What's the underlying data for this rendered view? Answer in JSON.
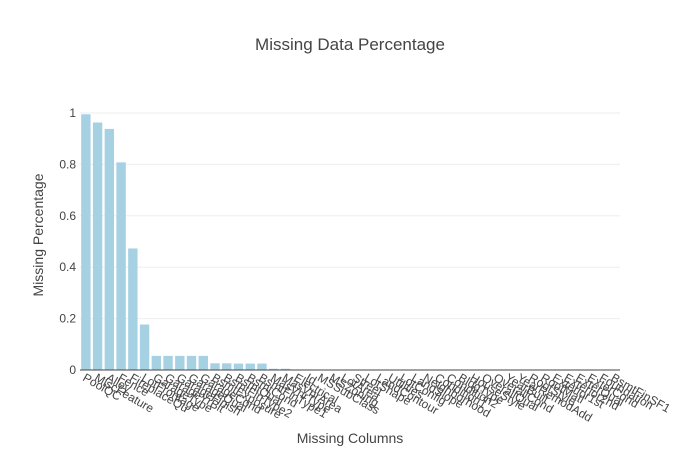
{
  "chart_data": {
    "type": "bar",
    "title": "Missing Data Percentage",
    "xlabel": "Missing Columns",
    "ylabel": "Missing Percentage",
    "ylim": [
      0,
      1
    ],
    "yticks": [
      0,
      0.2,
      0.4,
      0.6,
      0.8,
      1
    ],
    "ytick_labels": [
      "0",
      "0.2",
      "0.4",
      "0.6",
      "0.8",
      "1"
    ],
    "grid": true,
    "bar_color": "#a6d1e3",
    "categories": [
      "PoolQC",
      "MiscFeature",
      "Alley",
      "Fence",
      "FireplaceQu",
      "LotFrontage",
      "GarageType",
      "GarageYrBlt",
      "GarageFinish",
      "GarageQual",
      "GarageCond",
      "BsmtExposure",
      "BsmtFinType2",
      "BsmtQual",
      "BsmtCond",
      "BsmtFinType1",
      "MasVnrType",
      "MasVnrArea",
      "Electrical",
      "Id",
      "MSSubClass",
      "MSZoning",
      "LotArea",
      "Street",
      "LotShape",
      "LandContour",
      "Utilities",
      "LotConfig",
      "LandSlope",
      "Neighborhood",
      "Condition1",
      "Condition2",
      "BldgType",
      "HouseStyle",
      "OverallQual",
      "OverallCond",
      "YearBuilt",
      "YearRemodAdd",
      "RoofStyle",
      "RoofMatl",
      "Exterior1st",
      "Exterior2nd",
      "ExterQual",
      "ExterCond",
      "Foundation",
      "BsmtFinSF1"
    ],
    "values": [
      0.995,
      0.963,
      0.938,
      0.808,
      0.473,
      0.177,
      0.055,
      0.055,
      0.055,
      0.055,
      0.055,
      0.026,
      0.026,
      0.025,
      0.025,
      0.025,
      0.005,
      0.005,
      0.001,
      0,
      0,
      0,
      0,
      0,
      0,
      0,
      0,
      0,
      0,
      0,
      0,
      0,
      0,
      0,
      0,
      0,
      0,
      0,
      0,
      0,
      0,
      0,
      0,
      0,
      0,
      0
    ]
  }
}
